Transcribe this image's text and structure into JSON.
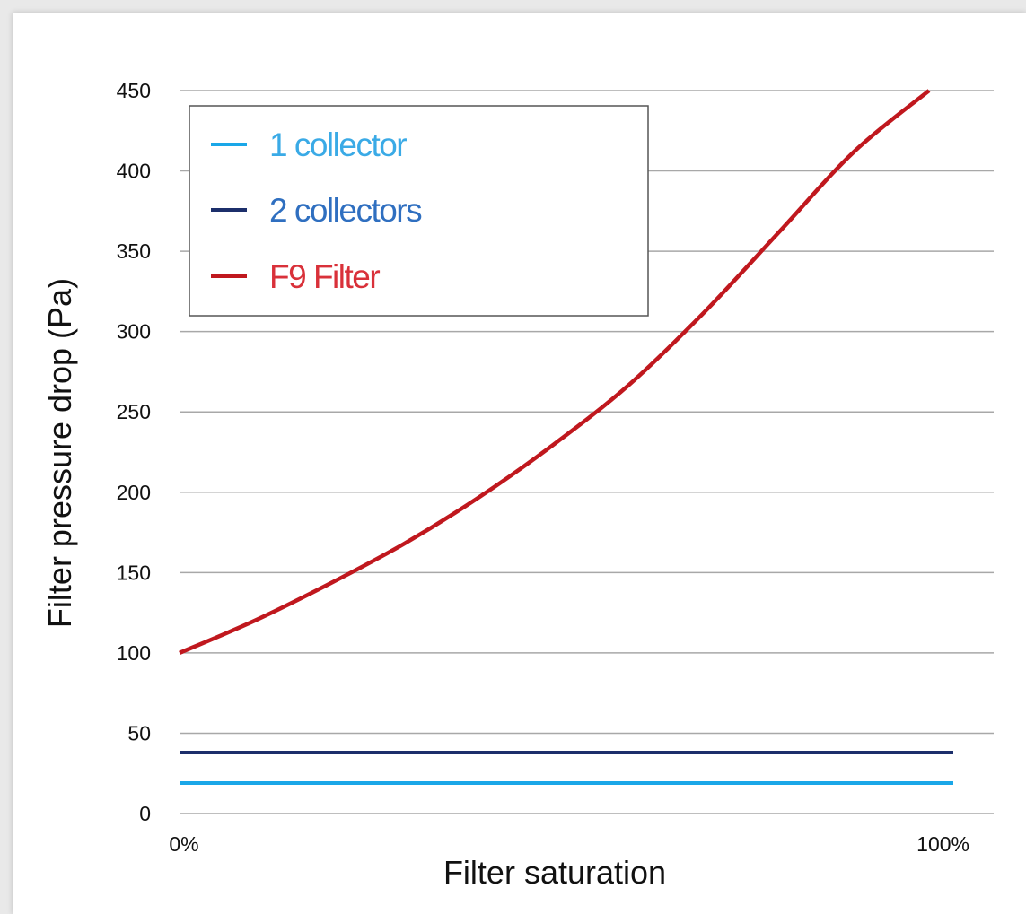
{
  "chart_data": {
    "type": "line",
    "title": "",
    "xlabel": "Filter saturation",
    "ylabel": "Filter pressure drop (Pa)",
    "ylim": [
      0,
      450
    ],
    "xlim": [
      0,
      100
    ],
    "y_ticks": [
      "0",
      "50",
      "100",
      "150",
      "200",
      "250",
      "300",
      "350",
      "400",
      "450"
    ],
    "x_ticks": [
      "0%",
      "100%"
    ],
    "grid": true,
    "legend_position": "top-left",
    "series": [
      {
        "name": "1 collector",
        "color": "#1aa7e8",
        "text_color": "#3aaae6",
        "x": [
          0,
          100
        ],
        "y": [
          19,
          19
        ]
      },
      {
        "name": "2 collectors",
        "color": "#1c2f6b",
        "text_color": "#2f6fc0",
        "x": [
          0,
          100
        ],
        "y": [
          38,
          38
        ]
      },
      {
        "name": "F9 Filter",
        "color": "#c0181e",
        "text_color": "#d9313a",
        "x": [
          0,
          10,
          20,
          30,
          40,
          50,
          60,
          70,
          80,
          90,
          100
        ],
        "y": [
          100,
          120,
          143,
          168,
          197,
          230,
          267,
          312,
          362,
          412,
          450
        ]
      }
    ]
  }
}
